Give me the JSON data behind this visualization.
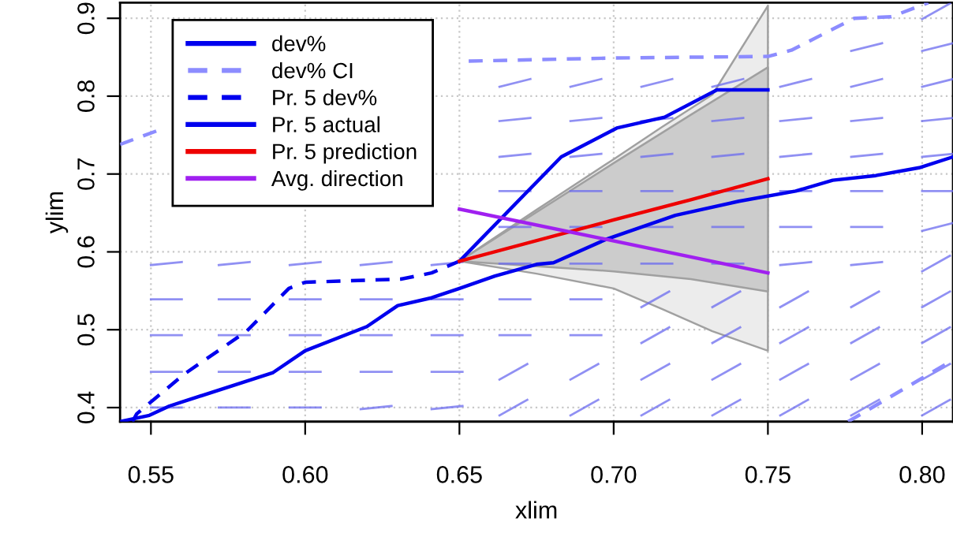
{
  "chart_data": {
    "type": "line",
    "xlabel": "xlim",
    "ylabel": "ylim",
    "xlim": [
      0.54,
      0.81
    ],
    "ylim": [
      0.382,
      0.92
    ],
    "xticks": [
      {
        "value": 0.55,
        "label": "0.55"
      },
      {
        "value": 0.6,
        "label": "0.60"
      },
      {
        "value": 0.65,
        "label": "0.65"
      },
      {
        "value": 0.7,
        "label": "0.70"
      },
      {
        "value": 0.75,
        "label": "0.75"
      },
      {
        "value": 0.8,
        "label": "0.80"
      }
    ],
    "yticks": [
      0.4,
      0.5,
      0.6,
      0.7,
      0.8,
      0.9
    ],
    "grid": true,
    "legend": "top left",
    "series": [
      {
        "type": "line",
        "color": "#6b6bef",
        "x": [
          0.55,
          0.56,
          null,
          0.572,
          0.582,
          null,
          0.595,
          0.605,
          null,
          0.618,
          0.628,
          null,
          0.641,
          0.651,
          null,
          0.663,
          0.672,
          null,
          0.686,
          0.695,
          null,
          0.709,
          0.718,
          null,
          0.732,
          0.741,
          null,
          0.754,
          0.763,
          null,
          0.777,
          0.786,
          null,
          0.8,
          0.809
        ],
        "values": [
          0.4,
          0.4,
          null,
          0.4,
          0.4,
          null,
          0.4,
          0.4,
          null,
          0.398,
          0.402,
          null,
          0.398,
          0.402,
          null,
          0.39,
          0.41,
          null,
          0.39,
          0.41,
          null,
          0.39,
          0.41,
          null,
          0.39,
          0.41,
          null,
          0.39,
          0.41,
          null,
          0.39,
          0.41,
          null,
          0.39,
          0.41
        ]
      },
      {
        "type": "line",
        "color": "#6b6bef",
        "x": [
          0.55,
          0.56,
          null,
          0.572,
          0.582,
          null,
          0.595,
          0.605,
          null,
          0.618,
          0.628,
          null,
          0.641,
          0.651,
          null,
          0.663,
          0.672,
          null,
          0.686,
          0.695,
          null,
          0.709,
          0.718,
          null,
          0.732,
          0.741,
          null,
          0.754,
          0.763,
          null,
          0.777,
          0.786,
          null,
          0.8,
          0.809
        ],
        "values": [
          0.446,
          0.446,
          null,
          0.446,
          0.446,
          null,
          0.446,
          0.446,
          null,
          0.446,
          0.446,
          null,
          0.446,
          0.446,
          null,
          0.436,
          0.456,
          null,
          0.436,
          0.456,
          null,
          0.436,
          0.456,
          null,
          0.436,
          0.456,
          null,
          0.436,
          0.456,
          null,
          0.436,
          0.456,
          null,
          0.436,
          0.456
        ]
      },
      {
        "type": "line",
        "color": "#6b6bef",
        "x": [
          0.55,
          0.56,
          null,
          0.572,
          0.582,
          null,
          0.595,
          0.605,
          null,
          0.618,
          0.628,
          null,
          0.641,
          0.651,
          null,
          0.663,
          0.673,
          null,
          0.686,
          0.696,
          null,
          0.709,
          0.718,
          null,
          0.732,
          0.741,
          null,
          0.754,
          0.763,
          null,
          0.777,
          0.786,
          null,
          0.8,
          0.809
        ],
        "values": [
          0.493,
          0.493,
          null,
          0.493,
          0.493,
          null,
          0.493,
          0.493,
          null,
          0.493,
          0.493,
          null,
          0.493,
          0.493,
          null,
          0.493,
          0.493,
          null,
          0.493,
          0.493,
          null,
          0.483,
          0.503,
          null,
          0.483,
          0.503,
          null,
          0.483,
          0.503,
          null,
          0.483,
          0.503,
          null,
          0.483,
          0.503
        ]
      },
      {
        "type": "line",
        "color": "#6b6bef",
        "x": [
          0.55,
          0.56,
          null,
          0.572,
          0.582,
          null,
          0.595,
          0.605,
          null,
          0.618,
          0.628,
          null,
          0.641,
          0.651,
          null,
          0.663,
          0.673,
          null,
          0.686,
          0.696,
          null,
          0.709,
          0.718,
          null,
          0.732,
          0.741,
          null,
          0.754,
          0.763,
          null,
          0.777,
          0.786,
          null,
          0.8,
          0.809
        ],
        "values": [
          0.539,
          0.539,
          null,
          0.539,
          0.539,
          null,
          0.539,
          0.539,
          null,
          0.539,
          0.539,
          null,
          0.539,
          0.539,
          null,
          0.539,
          0.539,
          null,
          0.539,
          0.539,
          null,
          0.529,
          0.549,
          null,
          0.529,
          0.549,
          null,
          0.529,
          0.549,
          null,
          0.529,
          0.549,
          null,
          0.529,
          0.549
        ]
      },
      {
        "type": "line",
        "color": "#6b6bef",
        "x": [
          0.55,
          0.56,
          null,
          0.572,
          0.582,
          null,
          0.595,
          0.605,
          null,
          0.618,
          0.628,
          null,
          0.641,
          0.651,
          null,
          0.663,
          0.673,
          null,
          0.686,
          0.696,
          null,
          0.709,
          0.719,
          null,
          0.732,
          0.742,
          null,
          0.754,
          0.764,
          null,
          0.777,
          0.787,
          null,
          0.8,
          0.809
        ],
        "values": [
          0.583,
          0.587,
          null,
          0.583,
          0.587,
          null,
          0.583,
          0.587,
          null,
          0.583,
          0.587,
          null,
          0.583,
          0.587,
          null,
          0.585,
          0.585,
          null,
          0.585,
          0.585,
          null,
          0.585,
          0.585,
          null,
          0.585,
          0.585,
          null,
          0.583,
          0.587,
          null,
          0.583,
          0.587,
          null,
          0.575,
          0.595
        ]
      },
      {
        "type": "line",
        "color": "#6b6bef",
        "x": [
          0.663,
          0.673,
          null,
          0.686,
          0.696,
          null,
          0.709,
          0.719,
          null,
          0.732,
          0.742,
          null,
          0.754,
          0.764,
          null,
          0.777,
          0.787,
          null,
          0.8,
          0.81
        ],
        "values": [
          0.632,
          0.632,
          null,
          0.632,
          0.632,
          null,
          0.632,
          0.632,
          null,
          0.632,
          0.632,
          null,
          0.632,
          0.632,
          null,
          0.632,
          0.632,
          null,
          0.627,
          0.637
        ]
      },
      {
        "type": "line",
        "color": "#6b6bef",
        "x": [
          0.663,
          0.673,
          null,
          0.686,
          0.696,
          null,
          0.709,
          0.719,
          null,
          0.732,
          0.742,
          null,
          0.754,
          0.764,
          null,
          0.777,
          0.787,
          null,
          0.8,
          0.81
        ],
        "values": [
          0.678,
          0.678,
          null,
          0.678,
          0.678,
          null,
          0.678,
          0.678,
          null,
          0.678,
          0.678,
          null,
          0.678,
          0.678,
          null,
          0.678,
          0.678,
          null,
          0.678,
          0.678
        ]
      },
      {
        "type": "line",
        "color": "#6b6bef",
        "x": [
          0.663,
          0.673,
          null,
          0.686,
          0.696,
          null,
          0.709,
          0.719,
          null,
          0.732,
          0.742,
          null,
          0.754,
          0.764,
          null,
          0.777,
          0.787,
          null,
          0.8,
          0.81
        ],
        "values": [
          0.722,
          0.726,
          null,
          0.722,
          0.726,
          null,
          0.722,
          0.726,
          null,
          0.722,
          0.726,
          null,
          0.722,
          0.726,
          null,
          0.722,
          0.726,
          null,
          0.722,
          0.726
        ]
      },
      {
        "type": "line",
        "color": "#6b6bef",
        "x": [
          0.663,
          0.673,
          null,
          0.686,
          0.696,
          null,
          0.709,
          0.719,
          null,
          0.732,
          0.742,
          null,
          0.754,
          0.764,
          null,
          0.777,
          0.787,
          null,
          0.8,
          0.81
        ],
        "values": [
          0.768,
          0.772,
          null,
          0.768,
          0.772,
          null,
          0.768,
          0.772,
          null,
          0.768,
          0.772,
          null,
          0.768,
          0.772,
          null,
          0.768,
          0.772,
          null,
          0.768,
          0.772
        ]
      },
      {
        "type": "line",
        "color": "#6b6bef",
        "x": [
          0.663,
          0.673,
          null,
          0.686,
          0.696,
          null,
          0.709,
          0.719,
          null,
          0.732,
          0.742,
          null,
          0.754,
          0.764,
          null,
          0.777,
          0.787,
          null,
          0.8,
          0.81
        ],
        "values": [
          0.812,
          0.822,
          null,
          0.812,
          0.822,
          null,
          0.812,
          0.822,
          null,
          0.812,
          0.822,
          null,
          0.812,
          0.822,
          null,
          0.812,
          0.822,
          null,
          0.812,
          0.822
        ]
      },
      {
        "type": "line",
        "color": "#6b6bef",
        "x": [
          0.777,
          0.787,
          null,
          0.8,
          0.81,
          null,
          0.8,
          0.809
        ],
        "values": [
          0.858,
          0.868,
          null,
          0.858,
          0.868,
          null,
          0.899,
          0.919
        ]
      },
      {
        "type": "line",
        "color": "#ececec",
        "x": [
          0.65,
          0.675,
          0.7,
          0.7155,
          0.732,
          0.75
        ],
        "values": [
          null,
          null,
          null,
          null,
          null,
          null
        ],
        "lower": [
          0.588,
          0.572,
          0.553,
          0.527,
          0.498,
          0.473
        ],
        "upper": [
          0.588,
          0.654,
          0.719,
          0.76,
          0.802,
          0.916
        ]
      },
      {
        "name": "dev%",
        "type": "line",
        "color": "#0000ee",
        "line_style": "solid",
        "x": [
          0.54,
          0.5495,
          0.556,
          0.5896,
          0.6,
          0.62,
          0.63,
          0.641,
          0.65,
          0.6615,
          0.675,
          0.6805,
          0.6975,
          0.72,
          0.7406,
          0.759,
          0.771,
          0.785,
          0.799,
          0.81
        ],
        "values": [
          0.382,
          0.39,
          0.402,
          0.445,
          0.473,
          0.504,
          0.531,
          0.541,
          0.553,
          0.569,
          0.584,
          0.586,
          0.616,
          0.647,
          0.665,
          0.678,
          0.692,
          0.698,
          0.708,
          0.722
        ]
      },
      {
        "name": "dev% CI",
        "type": "line",
        "color": "#8c8cff",
        "line_style": "dashed",
        "x": [
          0.54,
          0.553,
          null,
          0.653,
          0.7,
          0.75,
          0.7576,
          0.778,
          0.79,
          0.802,
          null,
          0.776,
          0.81
        ],
        "values": [
          0.738,
          0.757,
          null,
          0.845,
          0.849,
          0.851,
          0.859,
          0.9,
          0.902,
          0.92,
          null,
          0.382,
          0.461
        ]
      },
      {
        "name": "Pr. 5 dev%",
        "type": "line",
        "color": "#0000ee",
        "line_style": "dashed",
        "x": [
          0.544,
          0.5454,
          0.5608,
          0.581,
          0.5947,
          0.6,
          0.631,
          0.641,
          0.65
        ],
        "values": [
          0.382,
          0.392,
          0.443,
          0.498,
          0.553,
          0.561,
          0.565,
          0.573,
          0.588
        ]
      },
      {
        "name": "Pr. 5 actual",
        "type": "line",
        "color": "#0000ee",
        "line_style": "solid",
        "x": [
          0.65,
          0.683,
          0.701,
          0.7165,
          0.7335,
          0.75
        ],
        "values": [
          0.588,
          0.722,
          0.759,
          0.773,
          0.808,
          0.808
        ]
      },
      {
        "name": "Pr. 5 prediction",
        "type": "line",
        "color": "#ee0000",
        "line_style": "solid",
        "x": [
          0.65,
          0.7,
          0.725,
          0.75
        ],
        "values": [
          0.588,
          0.641,
          0.667,
          0.694
        ],
        "lower": [
          0.588,
          0.575,
          0.565,
          0.549
        ],
        "upper": [
          0.588,
          0.714,
          0.776,
          0.837
        ]
      },
      {
        "name": "Avg. direction",
        "type": "line",
        "color": "#a020f0",
        "line_style": "solid",
        "x": [
          0.65,
          0.75
        ],
        "values": [
          0.655,
          0.573
        ]
      }
    ]
  }
}
